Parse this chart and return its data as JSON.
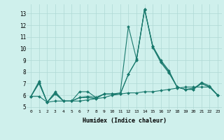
{
  "title": "",
  "xlabel": "Humidex (Indice chaleur)",
  "ylabel": "",
  "bg_color": "#cff0ec",
  "line_color": "#1a7a6e",
  "grid_color": "#aed8d4",
  "xlim": [
    -0.5,
    23.5
  ],
  "ylim": [
    4.8,
    13.8
  ],
  "yticks": [
    5,
    6,
    7,
    8,
    9,
    10,
    11,
    12,
    13
  ],
  "xticks": [
    0,
    1,
    2,
    3,
    4,
    5,
    6,
    7,
    8,
    9,
    10,
    11,
    12,
    13,
    14,
    15,
    16,
    17,
    18,
    19,
    20,
    21,
    22,
    23
  ],
  "series": [
    [
      5.9,
      7.2,
      5.4,
      6.3,
      5.5,
      5.5,
      5.8,
      5.8,
      5.7,
      6.1,
      6.1,
      6.1,
      7.8,
      9.0,
      13.4,
      10.2,
      9.0,
      8.1,
      6.7,
      6.5,
      6.5,
      7.1,
      6.8,
      6.0
    ],
    [
      5.9,
      7.1,
      5.4,
      6.2,
      5.5,
      5.5,
      6.3,
      6.3,
      5.8,
      6.1,
      6.1,
      6.1,
      7.8,
      9.0,
      13.35,
      10.2,
      8.9,
      8.0,
      6.7,
      6.5,
      6.6,
      7.0,
      6.7,
      6.0
    ],
    [
      5.9,
      7.0,
      5.4,
      6.1,
      5.5,
      5.5,
      5.8,
      5.9,
      5.8,
      6.1,
      6.1,
      6.2,
      11.9,
      9.1,
      13.35,
      10.1,
      8.8,
      7.9,
      6.7,
      6.5,
      6.5,
      7.0,
      6.7,
      6.0
    ],
    [
      5.9,
      5.9,
      5.4,
      5.5,
      5.5,
      5.5,
      5.5,
      5.6,
      5.7,
      5.8,
      6.0,
      6.1,
      6.2,
      6.2,
      6.3,
      6.3,
      6.4,
      6.5,
      6.6,
      6.7,
      6.7,
      6.7,
      6.7,
      6.0
    ]
  ]
}
